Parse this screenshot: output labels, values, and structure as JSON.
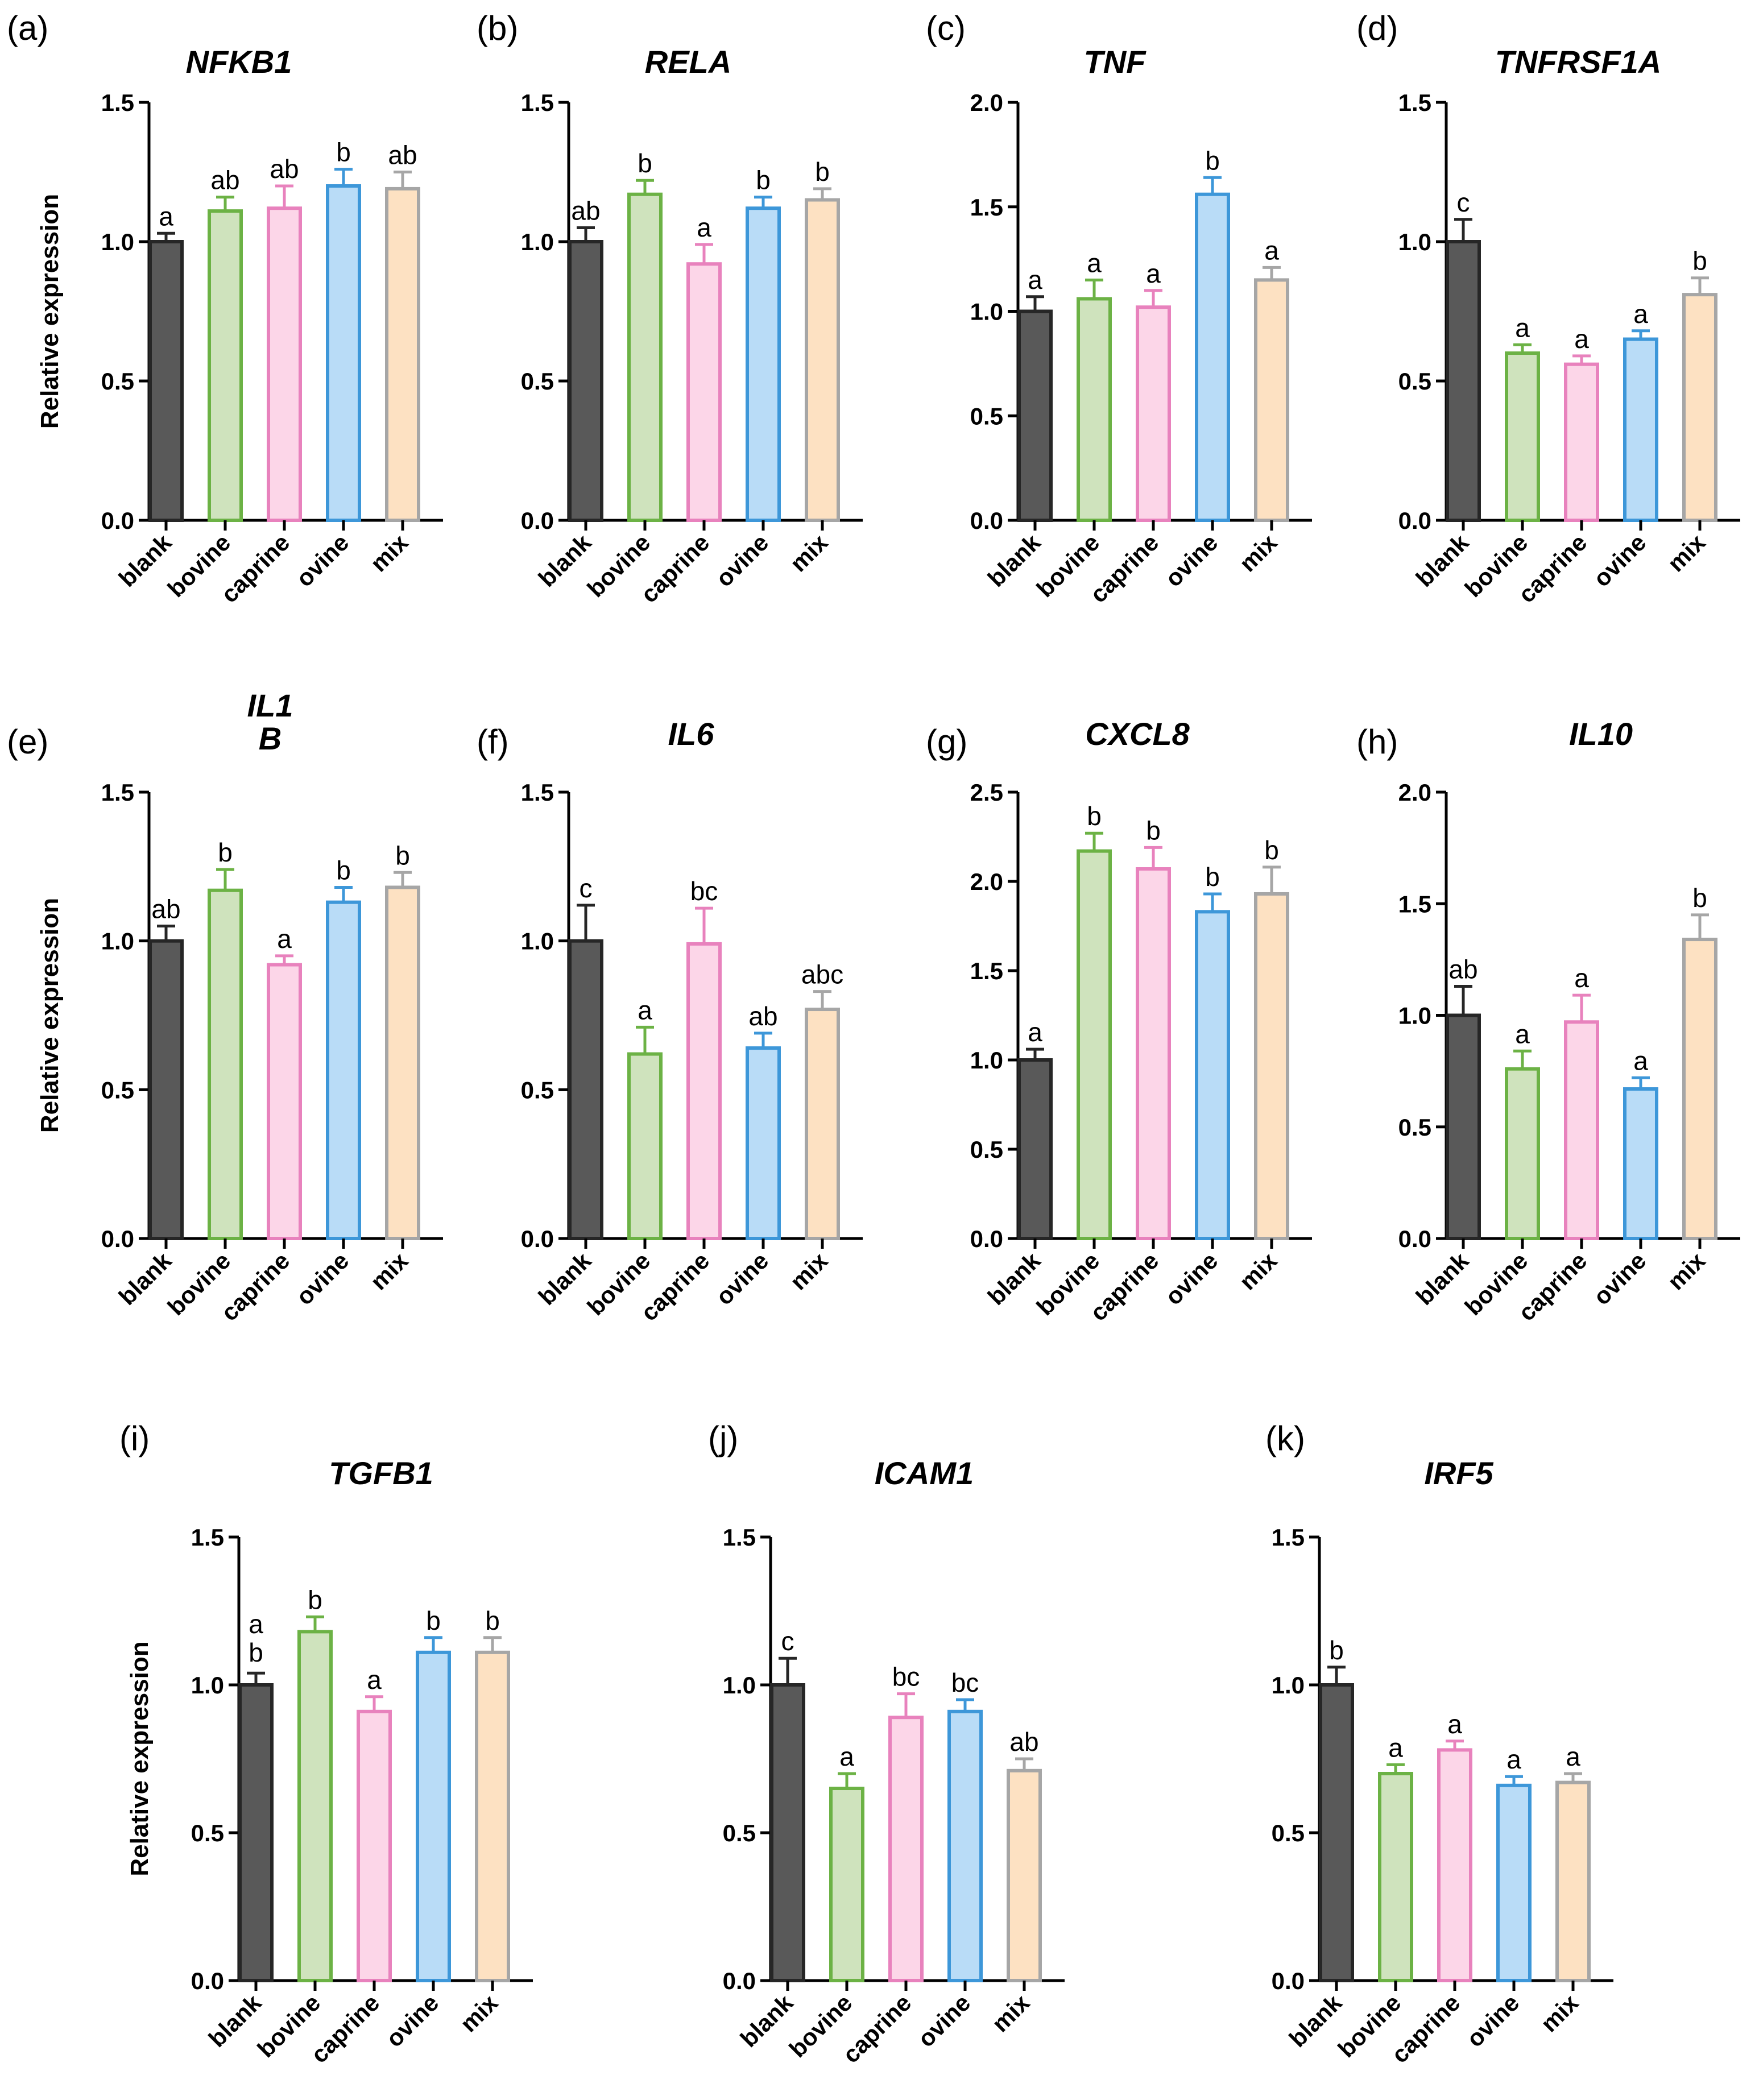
{
  "chart_data": [
    {
      "panel": "(a)",
      "type": "bar",
      "title": "NFKB1",
      "ylabel": "Relative expression",
      "ylim": [
        0,
        1.5
      ],
      "yticks": [
        "0.0",
        "0.5",
        "1.0",
        "1.5"
      ],
      "categories": [
        "blank",
        "bovine",
        "caprine",
        "ovine",
        "mix"
      ],
      "values": [
        1.0,
        1.11,
        1.12,
        1.2,
        1.19
      ],
      "errors": [
        0.03,
        0.05,
        0.08,
        0.06,
        0.06
      ],
      "sig": [
        "a",
        "ab",
        "ab",
        "b",
        "ab"
      ]
    },
    {
      "panel": "(b)",
      "type": "bar",
      "title": "RELA",
      "ylabel": "",
      "ylim": [
        0,
        1.5
      ],
      "yticks": [
        "0.0",
        "0.5",
        "1.0",
        "1.5"
      ],
      "categories": [
        "blank",
        "bovine",
        "caprine",
        "ovine",
        "mix"
      ],
      "values": [
        1.0,
        1.17,
        0.92,
        1.12,
        1.15
      ],
      "errors": [
        0.05,
        0.05,
        0.07,
        0.04,
        0.04
      ],
      "sig": [
        "ab",
        "b",
        "a",
        "b",
        "b"
      ]
    },
    {
      "panel": "(c)",
      "type": "bar",
      "title": "TNF",
      "ylabel": "",
      "ylim": [
        0,
        2.0
      ],
      "yticks": [
        "0.0",
        "0.5",
        "1.0",
        "1.5",
        "2.0"
      ],
      "categories": [
        "blank",
        "bovine",
        "caprine",
        "ovine",
        "mix"
      ],
      "values": [
        1.0,
        1.06,
        1.02,
        1.56,
        1.15
      ],
      "errors": [
        0.07,
        0.09,
        0.08,
        0.08,
        0.06
      ],
      "sig": [
        "a",
        "a",
        "a",
        "b",
        "a"
      ]
    },
    {
      "panel": "(d)",
      "type": "bar",
      "title": "TNFRSF1A",
      "ylabel": "",
      "ylim": [
        0,
        1.5
      ],
      "yticks": [
        "0.0",
        "0.5",
        "1.0",
        "1.5"
      ],
      "categories": [
        "blank",
        "bovine",
        "caprine",
        "ovine",
        "mix"
      ],
      "values": [
        1.0,
        0.6,
        0.56,
        0.65,
        0.81
      ],
      "errors": [
        0.08,
        0.03,
        0.03,
        0.03,
        0.06
      ],
      "sig": [
        "c",
        "a",
        "a",
        "a",
        "b"
      ]
    },
    {
      "panel": "(e)",
      "type": "bar",
      "title": "IL1\nB",
      "ylabel": "Relative expression",
      "ylim": [
        0,
        1.5
      ],
      "yticks": [
        "0.0",
        "0.5",
        "1.0",
        "1.5"
      ],
      "categories": [
        "blank",
        "bovine",
        "caprine",
        "ovine",
        "mix"
      ],
      "values": [
        1.0,
        1.17,
        0.92,
        1.13,
        1.18
      ],
      "errors": [
        0.05,
        0.07,
        0.03,
        0.05,
        0.05
      ],
      "sig": [
        "ab",
        "b",
        "a",
        "b",
        "b"
      ]
    },
    {
      "panel": "(f)",
      "type": "bar",
      "title": "IL6",
      "ylabel": "",
      "ylim": [
        0,
        1.5
      ],
      "yticks": [
        "0.0",
        "0.5",
        "1.0",
        "1.5"
      ],
      "categories": [
        "blank",
        "bovine",
        "caprine",
        "ovine",
        "mix"
      ],
      "values": [
        1.0,
        0.62,
        0.99,
        0.64,
        0.77
      ],
      "errors": [
        0.12,
        0.09,
        0.12,
        0.05,
        0.06
      ],
      "sig": [
        "c",
        "a",
        "bc",
        "ab",
        "abc"
      ]
    },
    {
      "panel": "(g)",
      "type": "bar",
      "title": "CXCL8",
      "ylabel": "",
      "ylim": [
        0,
        2.5
      ],
      "yticks": [
        "0.0",
        "0.5",
        "1.0",
        "1.5",
        "2.0",
        "2.5"
      ],
      "categories": [
        "blank",
        "bovine",
        "caprine",
        "ovine",
        "mix"
      ],
      "values": [
        1.0,
        2.17,
        2.07,
        1.83,
        1.93
      ],
      "errors": [
        0.06,
        0.1,
        0.12,
        0.1,
        0.15
      ],
      "sig": [
        "a",
        "b",
        "b",
        "b",
        "b"
      ]
    },
    {
      "panel": "(h)",
      "type": "bar",
      "title": "IL10",
      "ylabel": "",
      "ylim": [
        0,
        2.0
      ],
      "yticks": [
        "0.0",
        "0.5",
        "1.0",
        "1.5",
        "2.0"
      ],
      "categories": [
        "blank",
        "bovine",
        "caprine",
        "ovine",
        "mix"
      ],
      "values": [
        1.0,
        0.76,
        0.97,
        0.67,
        1.34
      ],
      "errors": [
        0.13,
        0.08,
        0.12,
        0.05,
        0.11
      ],
      "sig": [
        "ab",
        "a",
        "a",
        "a",
        "b"
      ]
    },
    {
      "panel": "(i)",
      "type": "bar",
      "title": "TGFB1",
      "ylabel": "Relative expression",
      "ylim": [
        0,
        1.5
      ],
      "yticks": [
        "0.0",
        "0.5",
        "1.0",
        "1.5"
      ],
      "categories": [
        "blank",
        "bovine",
        "caprine",
        "ovine",
        "mix"
      ],
      "values": [
        1.0,
        1.18,
        0.91,
        1.11,
        1.11
      ],
      "errors": [
        0.04,
        0.05,
        0.05,
        0.05,
        0.05
      ],
      "sig": [
        "a\nb",
        "b",
        "a",
        "b",
        "b"
      ]
    },
    {
      "panel": "(j)",
      "type": "bar",
      "title": "ICAM1",
      "ylabel": "",
      "ylim": [
        0,
        1.5
      ],
      "yticks": [
        "0.0",
        "0.5",
        "1.0",
        "1.5"
      ],
      "categories": [
        "blank",
        "bovine",
        "caprine",
        "ovine",
        "mix"
      ],
      "values": [
        1.0,
        0.65,
        0.89,
        0.91,
        0.71
      ],
      "errors": [
        0.09,
        0.05,
        0.08,
        0.04,
        0.04
      ],
      "sig": [
        "c",
        "a",
        "bc",
        "bc",
        "ab"
      ]
    },
    {
      "panel": "(k)",
      "type": "bar",
      "title": "IRF5",
      "ylabel": "",
      "ylim": [
        0,
        1.5
      ],
      "yticks": [
        "0.0",
        "0.5",
        "1.0",
        "1.5"
      ],
      "categories": [
        "blank",
        "bovine",
        "caprine",
        "ovine",
        "mix"
      ],
      "values": [
        1.0,
        0.7,
        0.78,
        0.66,
        0.67
      ],
      "errors": [
        0.06,
        0.03,
        0.03,
        0.03,
        0.03
      ],
      "sig": [
        "b",
        "a",
        "a",
        "a",
        "a"
      ]
    }
  ],
  "series_colors": [
    {
      "name": "blank",
      "fill": "#595959",
      "stroke": "#262626"
    },
    {
      "name": "bovine",
      "fill": "#cfe3bd",
      "stroke": "#6cb245"
    },
    {
      "name": "caprine",
      "fill": "#fcd6e8",
      "stroke": "#e882bd"
    },
    {
      "name": "ovine",
      "fill": "#b9dcf7",
      "stroke": "#3d97d9"
    },
    {
      "name": "mix",
      "fill": "#fde1c2",
      "stroke": "#a6a6a6"
    }
  ]
}
